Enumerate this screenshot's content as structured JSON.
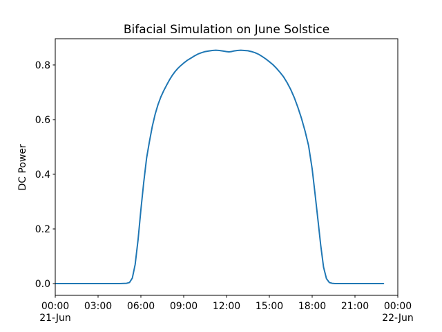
{
  "chart_data": {
    "type": "line",
    "title": "Bifacial Simulation on June Solstice",
    "xlabel": "",
    "ylabel": "DC Power",
    "line_color": "#1f77b4",
    "background_color": "#ffffff",
    "grid": false,
    "legend": false,
    "xlim_hours": [
      0,
      24
    ],
    "ylim": [
      -0.043,
      0.896
    ],
    "x_ticks": [
      {
        "hour": 0,
        "label": "00:00",
        "sublabel": "21-Jun"
      },
      {
        "hour": 3,
        "label": "03:00",
        "sublabel": ""
      },
      {
        "hour": 6,
        "label": "06:00",
        "sublabel": ""
      },
      {
        "hour": 9,
        "label": "09:00",
        "sublabel": ""
      },
      {
        "hour": 12,
        "label": "12:00",
        "sublabel": ""
      },
      {
        "hour": 15,
        "label": "15:00",
        "sublabel": ""
      },
      {
        "hour": 18,
        "label": "18:00",
        "sublabel": ""
      },
      {
        "hour": 21,
        "label": "21:00",
        "sublabel": ""
      },
      {
        "hour": 24,
        "label": "00:00",
        "sublabel": "22-Jun"
      }
    ],
    "y_ticks": [
      {
        "value": 0.0,
        "label": "0.0"
      },
      {
        "value": 0.2,
        "label": "0.2"
      },
      {
        "value": 0.4,
        "label": "0.4"
      },
      {
        "value": 0.6,
        "label": "0.6"
      },
      {
        "value": 0.8,
        "label": "0.8"
      }
    ],
    "series": [
      {
        "name": "DC Power",
        "x_hours": [
          0,
          1,
          2,
          3,
          4,
          4.5,
          5.0,
          5.2,
          5.4,
          5.6,
          5.8,
          6.0,
          6.2,
          6.4,
          6.6,
          6.8,
          7.0,
          7.2,
          7.4,
          7.6,
          7.8,
          8.0,
          8.2,
          8.4,
          8.6,
          8.8,
          9.0,
          9.25,
          9.5,
          9.75,
          10.0,
          10.25,
          10.5,
          10.75,
          11.0,
          11.25,
          11.5,
          11.75,
          12.0,
          12.17,
          12.33,
          12.5,
          12.75,
          13.0,
          13.25,
          13.5,
          13.75,
          14.0,
          14.25,
          14.5,
          14.75,
          15.0,
          15.25,
          15.5,
          15.75,
          16.0,
          16.25,
          16.5,
          16.75,
          17.0,
          17.25,
          17.5,
          17.75,
          18.0,
          18.2,
          18.4,
          18.6,
          18.8,
          19.0,
          19.2,
          19.4,
          19.6,
          20,
          21,
          22,
          23,
          24
        ],
        "y": [
          0,
          0,
          0,
          0,
          0,
          0,
          0.001,
          0.004,
          0.02,
          0.07,
          0.16,
          0.27,
          0.37,
          0.46,
          0.52,
          0.575,
          0.62,
          0.655,
          0.683,
          0.706,
          0.726,
          0.745,
          0.762,
          0.776,
          0.788,
          0.798,
          0.807,
          0.817,
          0.825,
          0.833,
          0.84,
          0.845,
          0.849,
          0.851,
          0.853,
          0.854,
          0.853,
          0.851,
          0.849,
          0.848,
          0.849,
          0.851,
          0.853,
          0.854,
          0.853,
          0.852,
          0.849,
          0.845,
          0.839,
          0.831,
          0.822,
          0.812,
          0.801,
          0.788,
          0.773,
          0.756,
          0.735,
          0.71,
          0.68,
          0.645,
          0.605,
          0.558,
          0.505,
          0.42,
          0.33,
          0.235,
          0.14,
          0.06,
          0.018,
          0.004,
          0.001,
          0,
          0,
          0,
          0,
          0
        ]
      }
    ]
  }
}
